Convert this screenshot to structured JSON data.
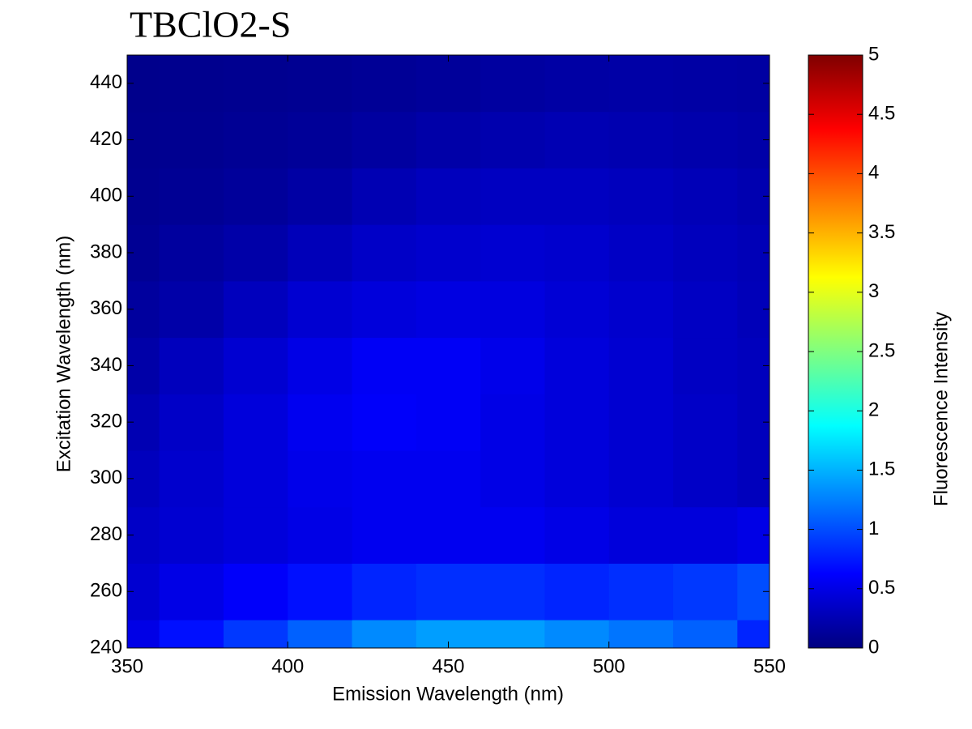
{
  "chart_data": {
    "type": "contour",
    "title": "TBClO2-S",
    "x_label": "Emission Wavelength (nm)",
    "y_label": "Excitation Wavelength (nm)",
    "colorbar_label": "Fluorescence Intensity",
    "colormap": "jet",
    "x": [
      350,
      370,
      390,
      410,
      430,
      450,
      470,
      490,
      510,
      530,
      550
    ],
    "y": [
      240,
      260,
      280,
      300,
      320,
      340,
      360,
      380,
      400,
      420,
      440
    ],
    "z": [
      [
        0.5,
        0.7,
        0.9,
        1.1,
        1.3,
        1.4,
        1.4,
        1.3,
        1.2,
        1.1,
        0.8
      ],
      [
        0.4,
        0.5,
        0.6,
        0.7,
        0.8,
        0.85,
        0.85,
        0.8,
        0.85,
        0.9,
        1.0
      ],
      [
        0.35,
        0.4,
        0.45,
        0.5,
        0.55,
        0.55,
        0.55,
        0.5,
        0.45,
        0.45,
        0.5
      ],
      [
        0.3,
        0.38,
        0.45,
        0.52,
        0.55,
        0.55,
        0.5,
        0.45,
        0.4,
        0.35,
        0.3
      ],
      [
        0.25,
        0.35,
        0.45,
        0.55,
        0.6,
        0.58,
        0.5,
        0.45,
        0.4,
        0.35,
        0.3
      ],
      [
        0.2,
        0.3,
        0.4,
        0.5,
        0.58,
        0.58,
        0.52,
        0.45,
        0.4,
        0.33,
        0.3
      ],
      [
        0.15,
        0.2,
        0.3,
        0.4,
        0.45,
        0.48,
        0.47,
        0.42,
        0.38,
        0.33,
        0.28
      ],
      [
        0.1,
        0.15,
        0.2,
        0.28,
        0.35,
        0.38,
        0.4,
        0.38,
        0.34,
        0.3,
        0.27
      ],
      [
        0.08,
        0.1,
        0.13,
        0.18,
        0.25,
        0.3,
        0.32,
        0.32,
        0.3,
        0.27,
        0.24
      ],
      [
        0.07,
        0.08,
        0.1,
        0.12,
        0.16,
        0.2,
        0.23,
        0.25,
        0.24,
        0.22,
        0.2
      ],
      [
        0.06,
        0.07,
        0.08,
        0.09,
        0.11,
        0.13,
        0.16,
        0.18,
        0.19,
        0.18,
        0.17
      ]
    ],
    "xlim": [
      350,
      550
    ],
    "ylim": [
      240,
      450
    ],
    "xticks": [
      350,
      400,
      450,
      500,
      550
    ],
    "yticks": [
      240,
      260,
      280,
      300,
      320,
      340,
      360,
      380,
      400,
      420,
      440
    ],
    "zlim": [
      0,
      5
    ],
    "zticks": [
      0,
      0.5,
      1,
      1.5,
      2,
      2.5,
      3,
      3.5,
      4,
      4.5,
      5
    ]
  }
}
